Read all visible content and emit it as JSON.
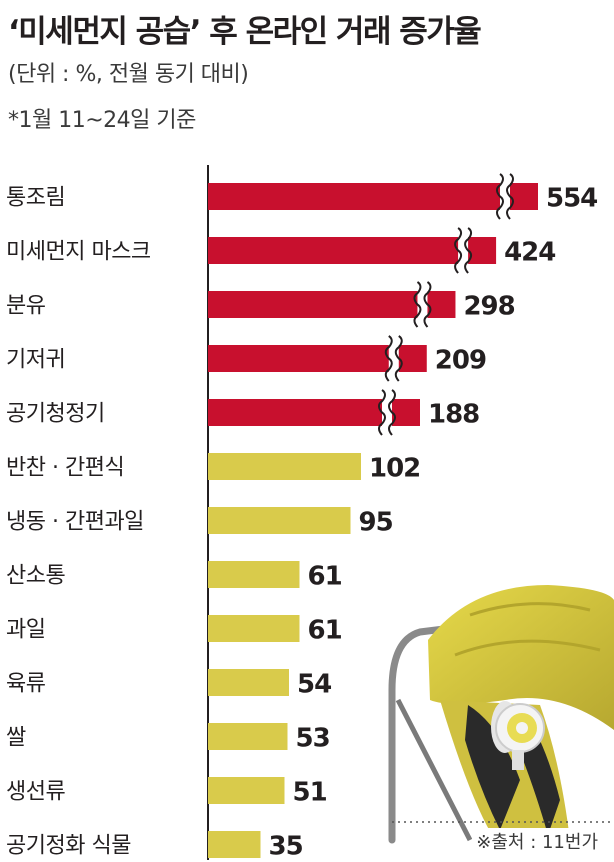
{
  "header": {
    "title": "‘미세먼지 공습’ 후 온라인 거래 증가율",
    "unit_note": "(단위 : %, 전월 동기 대비)",
    "period_note": "*1월 11~24일 기준"
  },
  "source": "※출처 : 11번가",
  "colors": {
    "high": "#c8102e",
    "normal": "#d9cb4b",
    "axis": "#231f20",
    "text": "#231f20"
  },
  "chart_data": {
    "type": "bar",
    "orientation": "horizontal",
    "title": "‘미세먼지 공습’ 후 온라인 거래 증가율",
    "categories": [
      "통조림",
      "미세먼지 마스크",
      "분유",
      "기저귀",
      "공기청정기",
      "반찬 · 간편식",
      "냉동 · 간편과일",
      "산소통",
      "과일",
      "육류",
      "쌀",
      "생선류",
      "공기정화 식물"
    ],
    "values": [
      554,
      424,
      298,
      209,
      188,
      102,
      95,
      61,
      61,
      54,
      53,
      51,
      35
    ],
    "axis_break_above": 102,
    "grid": false,
    "legend": "none"
  }
}
